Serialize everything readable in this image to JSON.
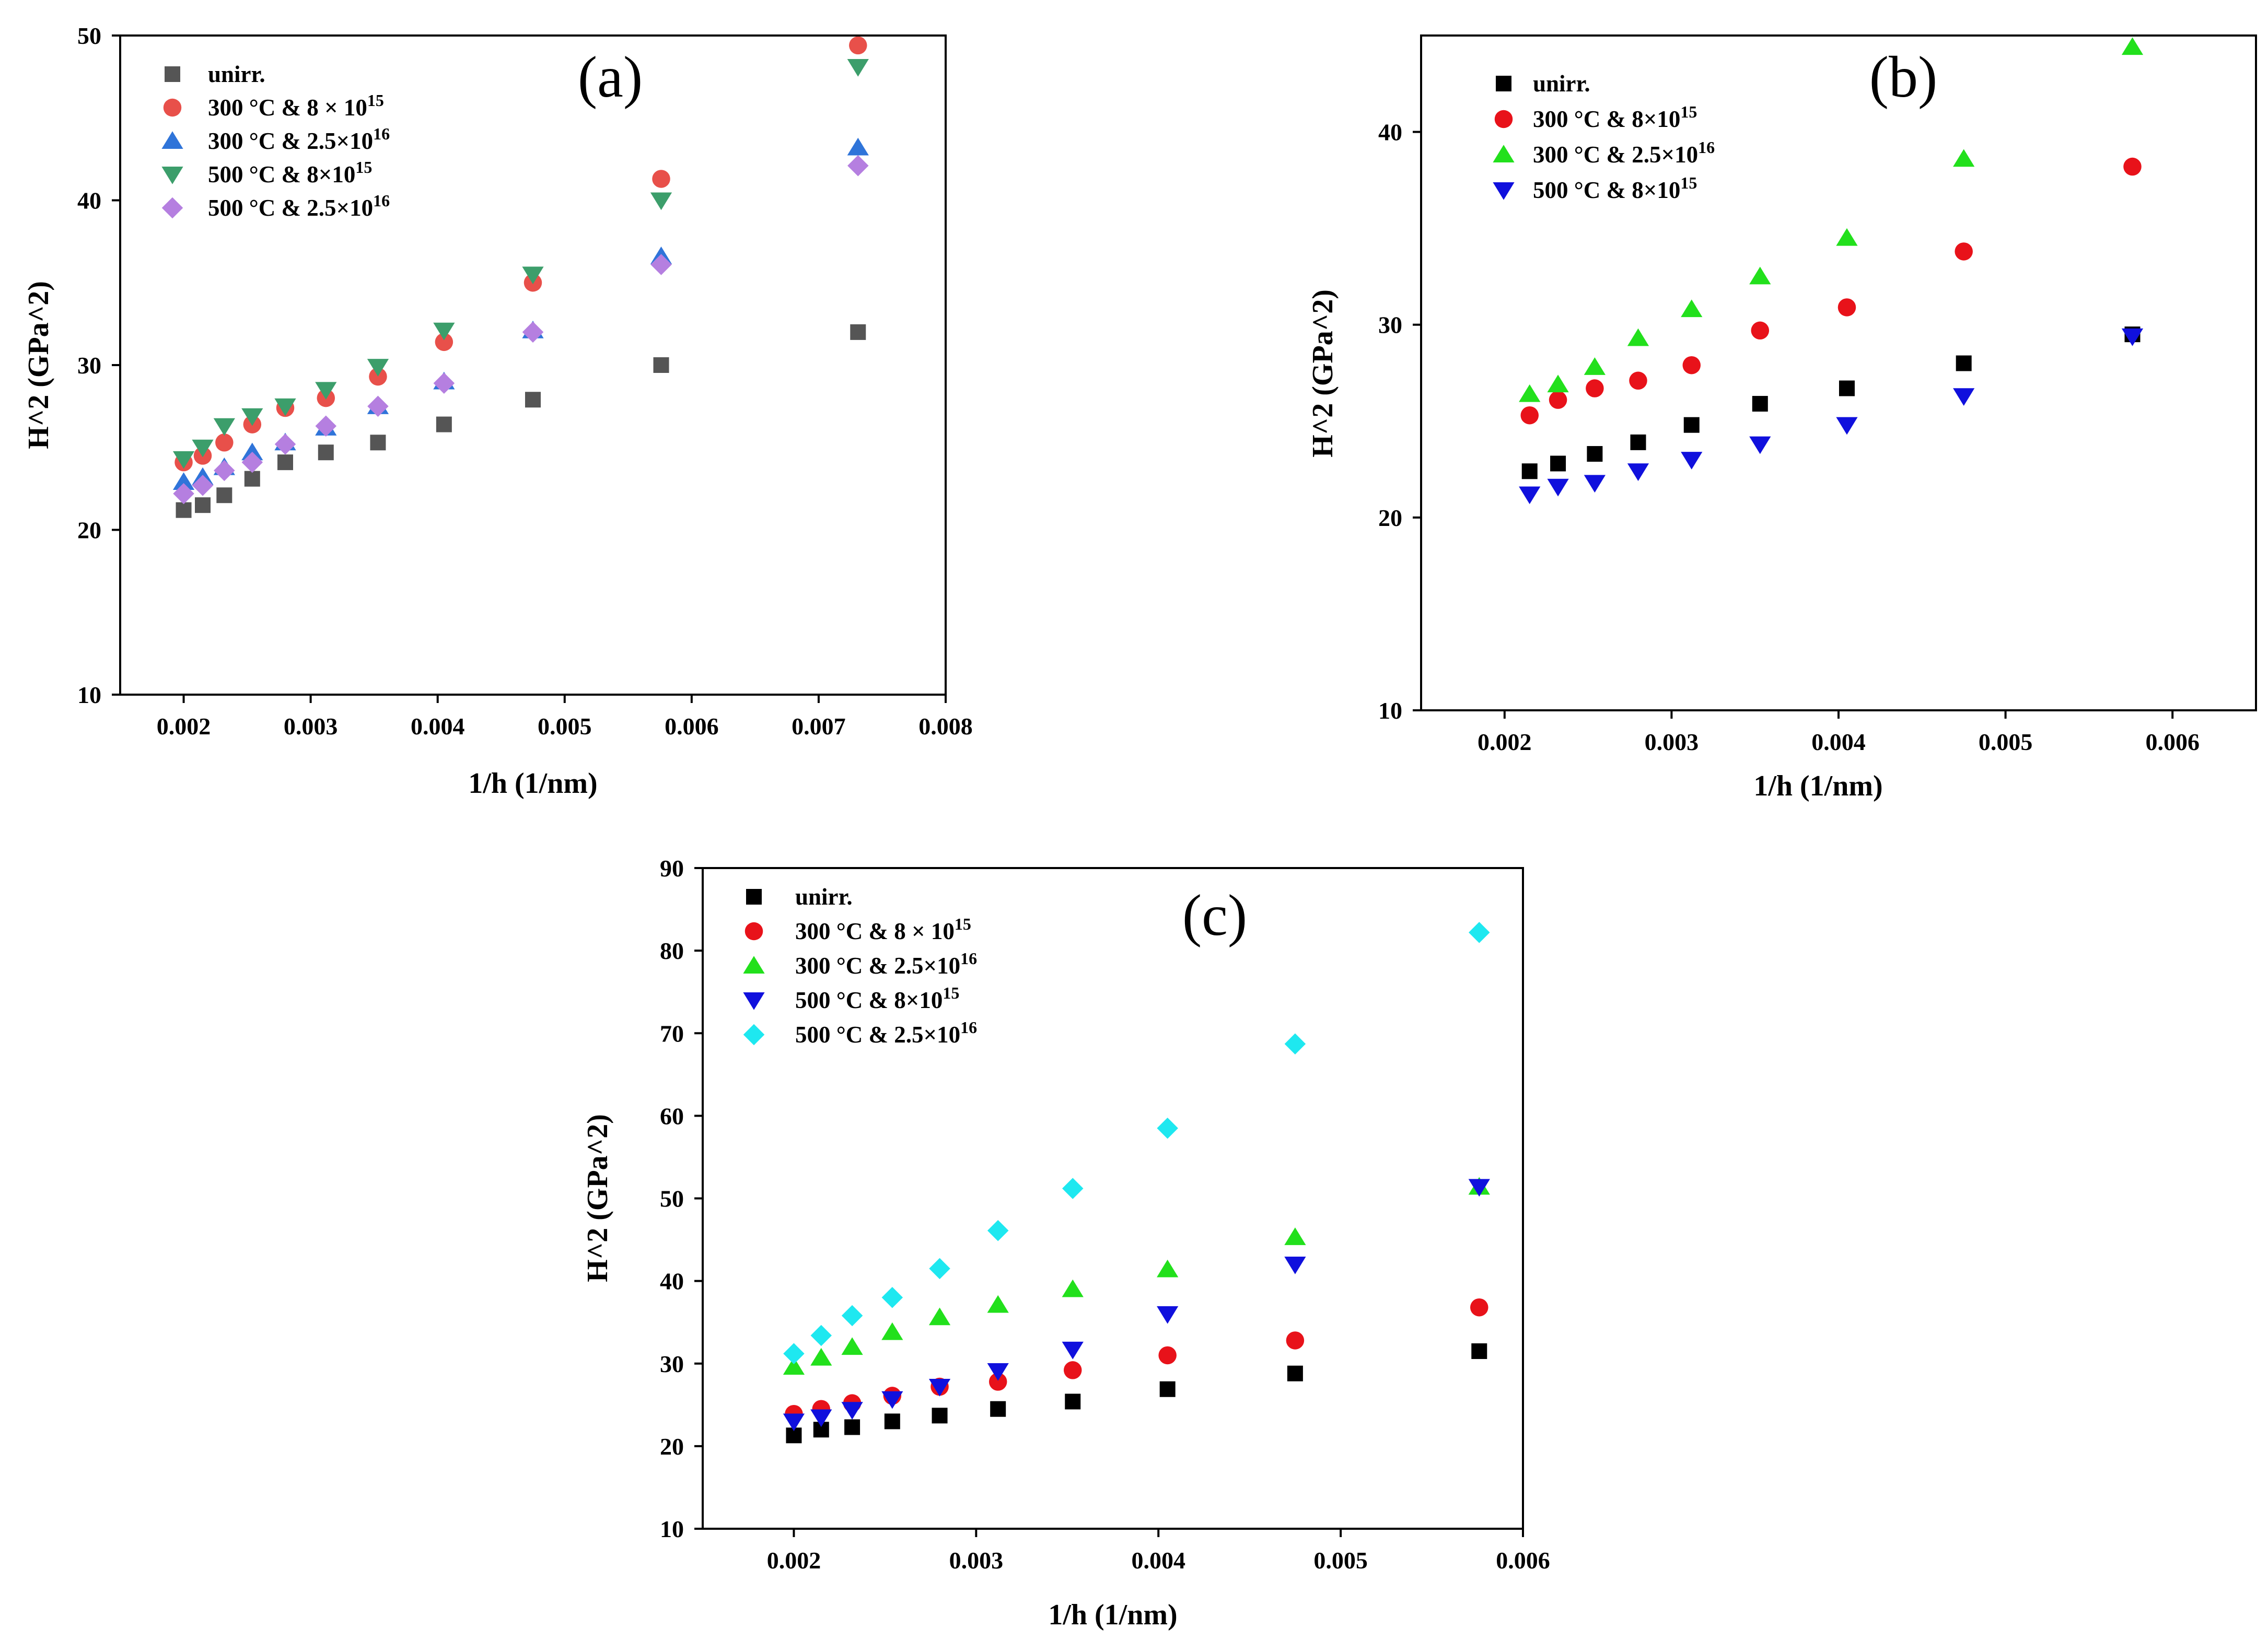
{
  "figure": {
    "panels_count": 3
  },
  "chart_data": [
    {
      "type": "scatter",
      "panel": "(a)",
      "xlabel": "1/h (1/nm)",
      "ylabel": "H^2 (GPa^2)",
      "xlim": [
        0.0015,
        0.008
      ],
      "ylim": [
        10,
        50
      ],
      "xticks": [
        0.002,
        0.003,
        0.004,
        0.005,
        0.006,
        0.007,
        0.008
      ],
      "xtick_labels": [
        "0.002",
        "0.003",
        "0.004",
        "0.005",
        "0.006",
        "0.007",
        "0.008"
      ],
      "yticks": [
        10,
        20,
        30,
        40,
        50
      ],
      "ytick_labels": [
        "10",
        "20",
        "30",
        "40",
        "50"
      ],
      "legend_position": "top-left",
      "grid": false,
      "series": [
        {
          "name": "unirr.",
          "sup": "",
          "marker": "square",
          "color": "#555555",
          "x": [
            0.002,
            0.00215,
            0.00232,
            0.00254,
            0.0028,
            0.00312,
            0.00353,
            0.00405,
            0.00475,
            0.00576,
            0.00731
          ],
          "y": [
            21.2,
            21.5,
            22.1,
            23.1,
            24.1,
            24.7,
            25.3,
            26.4,
            27.9,
            30.0,
            32.0
          ]
        },
        {
          "name": "300 °C & 8 × 10",
          "sup": "15",
          "marker": "circle",
          "color": "#e8504a",
          "x": [
            0.002,
            0.00215,
            0.00232,
            0.00254,
            0.0028,
            0.00312,
            0.00353,
            0.00405,
            0.00475,
            0.00576,
            0.00731
          ],
          "y": [
            24.1,
            24.5,
            25.3,
            26.4,
            27.4,
            28.0,
            29.3,
            31.4,
            35.0,
            41.3,
            49.4
          ]
        },
        {
          "name": "300 °C & 2.5×10",
          "sup": "16",
          "marker": "triangle-up",
          "color": "#2f74d9",
          "x": [
            0.002,
            0.00215,
            0.00232,
            0.00254,
            0.0028,
            0.00312,
            0.00353,
            0.00405,
            0.00475,
            0.00576,
            0.00731
          ],
          "y": [
            22.9,
            23.2,
            23.8,
            24.7,
            25.3,
            26.2,
            27.5,
            29.0,
            32.1,
            36.6,
            43.2
          ]
        },
        {
          "name": "500 °C & 8×10",
          "sup": "15",
          "marker": "triangle-down",
          "color": "#3c9e6b",
          "x": [
            0.002,
            0.00215,
            0.00232,
            0.00254,
            0.0028,
            0.00312,
            0.00353,
            0.00405,
            0.00475,
            0.00576,
            0.00731
          ],
          "y": [
            24.3,
            25.0,
            26.3,
            26.9,
            27.5,
            28.5,
            29.9,
            32.1,
            35.5,
            40.0,
            48.1
          ]
        },
        {
          "name": "500 °C & 2.5×10",
          "sup": "16",
          "marker": "diamond",
          "color": "#b57fe0",
          "x": [
            0.002,
            0.00215,
            0.00232,
            0.00254,
            0.0028,
            0.00312,
            0.00353,
            0.00405,
            0.00475,
            0.00576,
            0.00731
          ],
          "y": [
            22.2,
            22.7,
            23.6,
            24.1,
            25.2,
            26.3,
            27.5,
            28.9,
            32.0,
            36.1,
            42.1
          ]
        }
      ]
    },
    {
      "type": "scatter",
      "panel": "(b)",
      "xlabel": "1/h (1/nm)",
      "ylabel": "H^2 (GPa^2)",
      "xlim": [
        0.0015,
        0.0065
      ],
      "ylim": [
        10,
        45
      ],
      "xticks": [
        0.002,
        0.003,
        0.004,
        0.005,
        0.006
      ],
      "xtick_labels": [
        "0.002",
        "0.003",
        "0.004",
        "0.005",
        "0.006"
      ],
      "yticks": [
        10,
        20,
        30,
        40
      ],
      "ytick_labels": [
        "10",
        "20",
        "30",
        "40"
      ],
      "legend_position": "top-left",
      "grid": false,
      "series": [
        {
          "name": "unirr.",
          "sup": "",
          "marker": "square",
          "color": "#000000",
          "x": [
            0.00215,
            0.00232,
            0.00254,
            0.0028,
            0.00312,
            0.00353,
            0.00405,
            0.00475,
            0.00576
          ],
          "y": [
            22.4,
            22.8,
            23.3,
            23.9,
            24.8,
            25.9,
            26.7,
            28.0,
            29.5
          ]
        },
        {
          "name": "300 °C & 8×10",
          "sup": "15",
          "marker": "circle",
          "color": "#e8121a",
          "x": [
            0.00215,
            0.00232,
            0.00254,
            0.0028,
            0.00312,
            0.00353,
            0.00405,
            0.00475,
            0.00576
          ],
          "y": [
            25.3,
            26.1,
            26.7,
            27.1,
            27.9,
            29.7,
            30.9,
            33.8,
            38.2
          ]
        },
        {
          "name": "300 °C & 2.5×10",
          "sup": "16",
          "marker": "triangle-up",
          "color": "#22e01c",
          "x": [
            0.00215,
            0.00232,
            0.00254,
            0.0028,
            0.00312,
            0.00353,
            0.00405,
            0.00475,
            0.00576
          ],
          "y": [
            26.4,
            26.9,
            27.8,
            29.3,
            30.8,
            32.5,
            34.5,
            38.6,
            44.4
          ]
        },
        {
          "name": "500 °C & 8×10",
          "sup": "15",
          "marker": "triangle-down",
          "color": "#1010dd",
          "x": [
            0.00215,
            0.00232,
            0.00254,
            0.0028,
            0.00312,
            0.00353,
            0.00405,
            0.00475,
            0.00576
          ],
          "y": [
            21.2,
            21.6,
            21.8,
            22.4,
            23.0,
            23.8,
            24.8,
            26.3,
            29.4
          ]
        }
      ]
    },
    {
      "type": "scatter",
      "panel": "(c)",
      "xlabel": "1/h (1/nm)",
      "ylabel": "H^2 (GPa^2)",
      "xlim": [
        0.0015,
        0.006
      ],
      "ylim": [
        10,
        90
      ],
      "xticks": [
        0.002,
        0.003,
        0.004,
        0.005,
        0.006
      ],
      "xtick_labels": [
        "0.002",
        "0.003",
        "0.004",
        "0.005",
        "0.006"
      ],
      "yticks": [
        10,
        20,
        30,
        40,
        50,
        60,
        70,
        80,
        90
      ],
      "ytick_labels": [
        "10",
        "20",
        "30",
        "40",
        "50",
        "60",
        "70",
        "80",
        "90"
      ],
      "legend_position": "top-left",
      "grid": false,
      "series": [
        {
          "name": "unirr.",
          "sup": "",
          "marker": "square",
          "color": "#000000",
          "x": [
            0.002,
            0.00215,
            0.00232,
            0.00254,
            0.0028,
            0.00312,
            0.00353,
            0.00405,
            0.00475,
            0.00576
          ],
          "y": [
            21.3,
            22.0,
            22.3,
            23.0,
            23.7,
            24.5,
            25.4,
            26.9,
            28.8,
            31.5
          ]
        },
        {
          "name": "300 °C & 8 × 10",
          "sup": "15",
          "marker": "circle",
          "color": "#e8121a",
          "x": [
            0.002,
            0.00215,
            0.00232,
            0.00254,
            0.0028,
            0.00312,
            0.00353,
            0.00405,
            0.00475,
            0.00576
          ],
          "y": [
            23.9,
            24.5,
            25.2,
            26.1,
            27.2,
            27.8,
            29.2,
            31.0,
            32.8,
            36.8
          ]
        },
        {
          "name": "300 °C & 2.5×10",
          "sup": "16",
          "marker": "triangle-up",
          "color": "#22e01c",
          "x": [
            0.002,
            0.00215,
            0.00232,
            0.00254,
            0.0028,
            0.00312,
            0.00353,
            0.00405,
            0.00475,
            0.00576
          ],
          "y": [
            29.6,
            30.7,
            32.0,
            33.8,
            35.6,
            37.1,
            39.0,
            41.4,
            45.3,
            51.4
          ]
        },
        {
          "name": "500 °C & 8×10",
          "sup": "15",
          "marker": "triangle-down",
          "color": "#1010dd",
          "x": [
            0.002,
            0.00215,
            0.00232,
            0.00254,
            0.0028,
            0.00312,
            0.00353,
            0.00405,
            0.00475,
            0.00576
          ],
          "y": [
            23.0,
            23.5,
            24.4,
            25.7,
            27.2,
            29.1,
            31.7,
            36.0,
            42.0,
            51.4
          ]
        },
        {
          "name": "500 °C & 2.5×10",
          "sup": "16",
          "marker": "diamond",
          "color": "#1ee8f0",
          "x": [
            0.002,
            0.00215,
            0.00232,
            0.00254,
            0.0028,
            0.00312,
            0.00353,
            0.00405,
            0.00475,
            0.00576
          ],
          "y": [
            31.2,
            33.4,
            35.8,
            38.0,
            41.5,
            46.1,
            51.2,
            58.5,
            68.7,
            82.2
          ]
        }
      ]
    }
  ]
}
